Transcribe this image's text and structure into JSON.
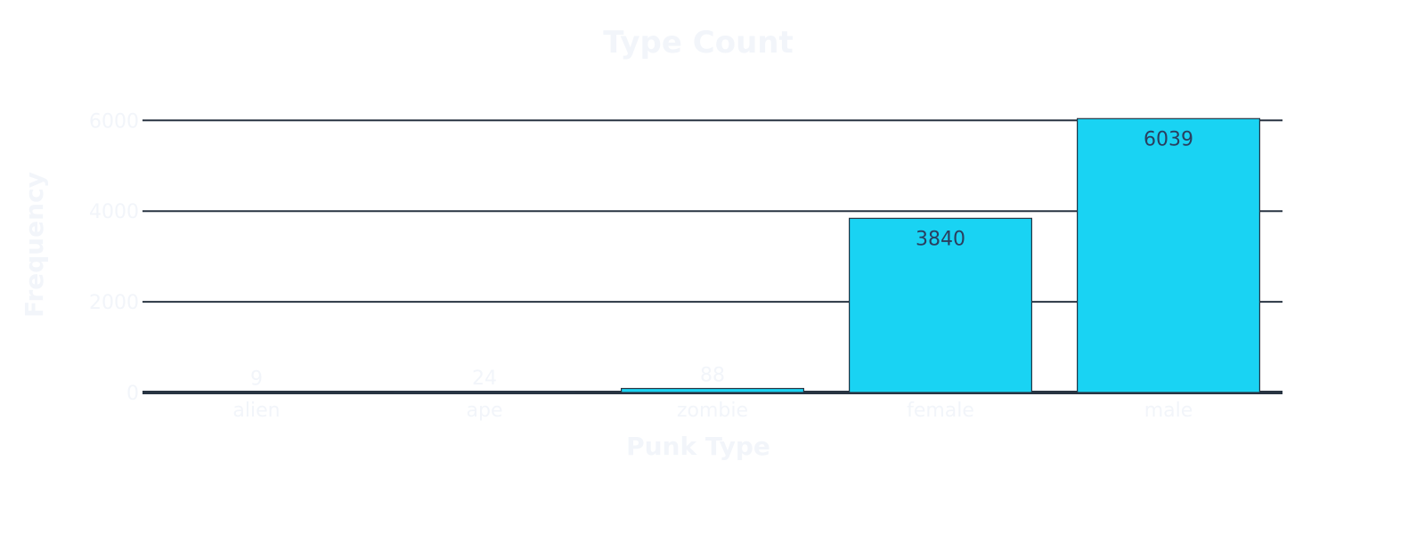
{
  "chart_data": {
    "type": "bar",
    "title": "Type Count",
    "xlabel": "Punk Type",
    "ylabel": "Frequency",
    "categories": [
      "alien",
      "ape",
      "zombie",
      "female",
      "male"
    ],
    "values": [
      9,
      24,
      88,
      3840,
      6039
    ],
    "ylim": [
      0,
      6300
    ],
    "yticks": [
      0,
      2000,
      4000,
      6000
    ],
    "grid": true,
    "colors": {
      "bar": "#19d3f3",
      "grid": "#283442",
      "text": "#f2f5fa",
      "inside_label": "#2a3f5f"
    }
  }
}
